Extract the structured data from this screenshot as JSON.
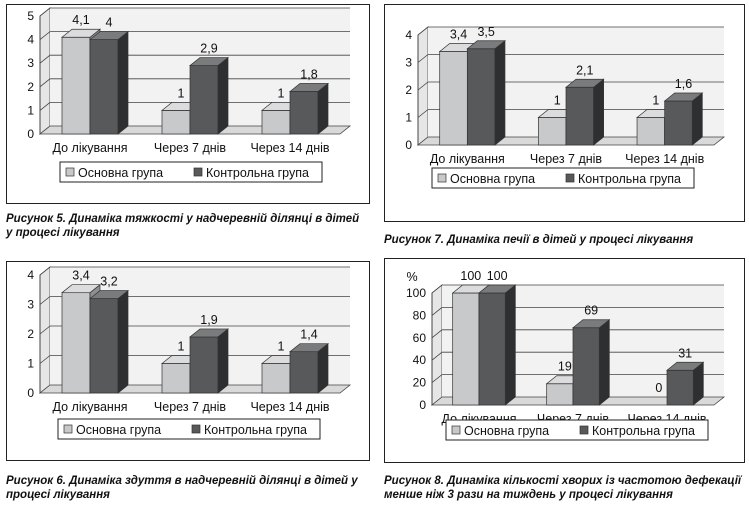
{
  "legend": {
    "series_a": "Основна група",
    "series_b": "Контрольна група"
  },
  "colors": {
    "series_a_front": "#c8c9cb",
    "series_a_side": "#8e8f92",
    "series_a_top": "#dcdcde",
    "series_b_front": "#58595b",
    "series_b_side": "#2e2f31",
    "series_b_top": "#7a7b7d",
    "wall": "#f2f2f2",
    "grid": "#444444"
  },
  "chart_data": [
    {
      "id": "fig5",
      "type": "bar",
      "title": "",
      "caption": "Рисунок 5. Динаміка тяжкості у надчеревній ділянці в дітей у процесі лікування",
      "unit": "",
      "categories": [
        "До лікування",
        "Через 7 днів",
        "Через 14 днів"
      ],
      "yticks": [
        "0",
        "1",
        "2",
        "3",
        "4",
        "5"
      ],
      "ylim": [
        0,
        5
      ],
      "grid": true,
      "legend_position": "bottom",
      "series": [
        {
          "name": "Основна група",
          "values": [
            4.1,
            1,
            1
          ],
          "labels": [
            "4,1",
            "1",
            "1"
          ]
        },
        {
          "name": "Контрольна група",
          "values": [
            4,
            2.9,
            1.8
          ],
          "labels": [
            "4",
            "2,9",
            "1,8"
          ]
        }
      ]
    },
    {
      "id": "fig7",
      "type": "bar",
      "title": "",
      "caption": "Рисунок 7. Динаміка печії в дітей у процесі лікування",
      "unit": "",
      "categories": [
        "До лікування",
        "Через 7 днів",
        "Через 14 днів"
      ],
      "yticks": [
        "0",
        "1",
        "2",
        "3",
        "4"
      ],
      "ylim": [
        0,
        4
      ],
      "grid": true,
      "legend_position": "bottom",
      "series": [
        {
          "name": "Основна група",
          "values": [
            3.4,
            1,
            1
          ],
          "labels": [
            "3,4",
            "1",
            "1"
          ]
        },
        {
          "name": "Контрольна група",
          "values": [
            3.5,
            2.1,
            1.6
          ],
          "labels": [
            "3,5",
            "2,1",
            "1,6"
          ]
        }
      ]
    },
    {
      "id": "fig6",
      "type": "bar",
      "title": "",
      "caption": "Рисунок 6. Динаміка здуття в надчеревній ділянці в дітей у процесі лікування",
      "unit": "",
      "categories": [
        "До лікування",
        "Через 7 днів",
        "Через 14 днів"
      ],
      "yticks": [
        "0",
        "1",
        "2",
        "3",
        "4"
      ],
      "ylim": [
        0,
        4
      ],
      "grid": true,
      "legend_position": "bottom",
      "series": [
        {
          "name": "Основна група",
          "values": [
            3.4,
            1,
            1
          ],
          "labels": [
            "3,4",
            "1",
            "1"
          ]
        },
        {
          "name": "Контрольна група",
          "values": [
            3.2,
            1.9,
            1.4
          ],
          "labels": [
            "3,2",
            "1,9",
            "1,4"
          ]
        }
      ]
    },
    {
      "id": "fig8",
      "type": "bar",
      "title": "",
      "caption": "Рисунок 8. Динаміка кількості хворих із частотою дефекації менше ніж 3 рази на тиждень у процесі лікування",
      "unit": "%",
      "categories": [
        "До лікування",
        "Через 7 днів",
        "Через 14 днів"
      ],
      "yticks": [
        "0",
        "20",
        "40",
        "60",
        "80",
        "100"
      ],
      "ylim": [
        0,
        100
      ],
      "grid": true,
      "legend_position": "bottom",
      "series": [
        {
          "name": "Основна група",
          "values": [
            100,
            19,
            0
          ],
          "labels": [
            "100",
            "19",
            "0"
          ]
        },
        {
          "name": "Контрольна група",
          "values": [
            100,
            69,
            31
          ],
          "labels": [
            "100",
            "69",
            "31"
          ]
        }
      ]
    }
  ]
}
